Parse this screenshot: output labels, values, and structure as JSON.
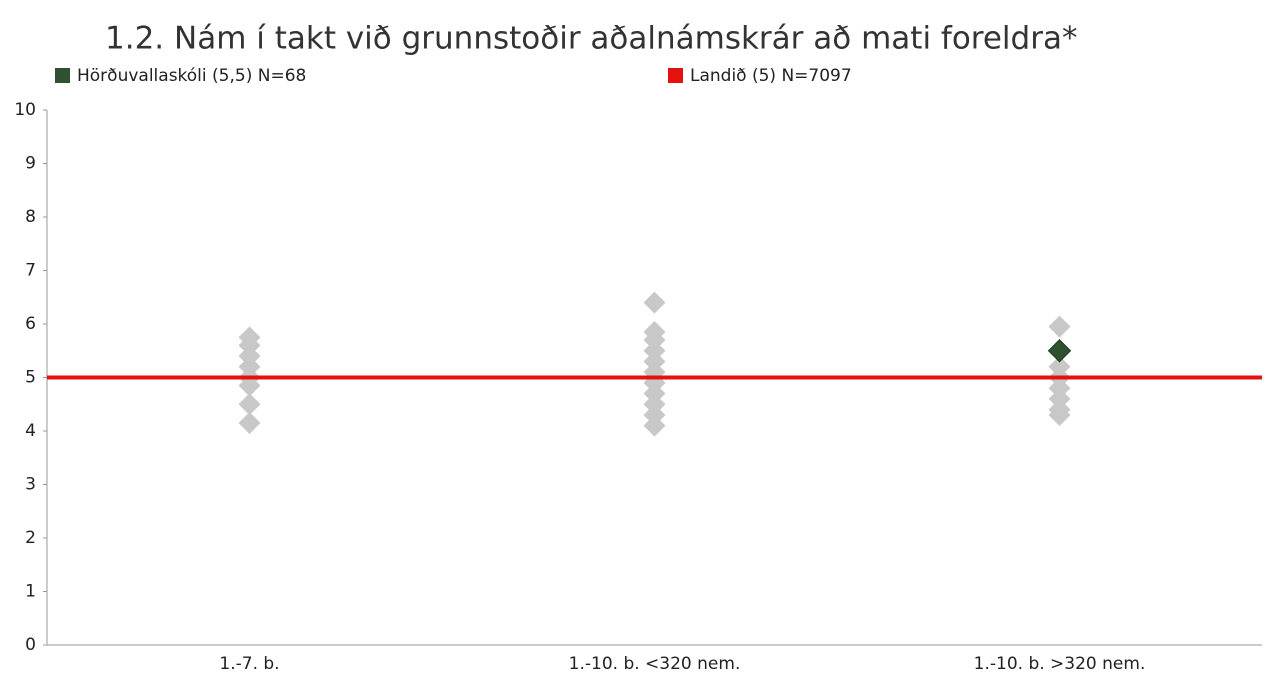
{
  "chart_data": {
    "type": "scatter",
    "title": "1.2. Nám í takt við grunnstoðir aðalnámskrár að mati foreldra*",
    "categories": [
      "1.-7. b.",
      "1.-10. b. <320 nem.",
      "1.-10. b. >320 nem."
    ],
    "ylim": [
      0,
      10
    ],
    "yticks": [
      0,
      1,
      2,
      3,
      4,
      5,
      6,
      7,
      8,
      9,
      10
    ],
    "legend": "top",
    "series": [
      {
        "color": "#c8c8c8",
        "values": [
          [
            5.75,
            5.6,
            5.4,
            5.2,
            5.0,
            4.85,
            4.5,
            4.15
          ],
          [
            6.4,
            5.85,
            5.7,
            5.5,
            5.3,
            5.1,
            4.9,
            4.7,
            4.5,
            4.3,
            4.1
          ],
          [
            5.95,
            5.2,
            5.0,
            4.8,
            4.6,
            4.4,
            4.3
          ]
        ]
      },
      {
        "name": "Hörðuvallaskóli (5,5) N=68",
        "color": "#2f5130",
        "values": [
          null,
          null,
          5.5
        ]
      },
      {
        "name": "Landið (5) N=7097",
        "color": "#e4120c",
        "value": 5
      }
    ]
  }
}
